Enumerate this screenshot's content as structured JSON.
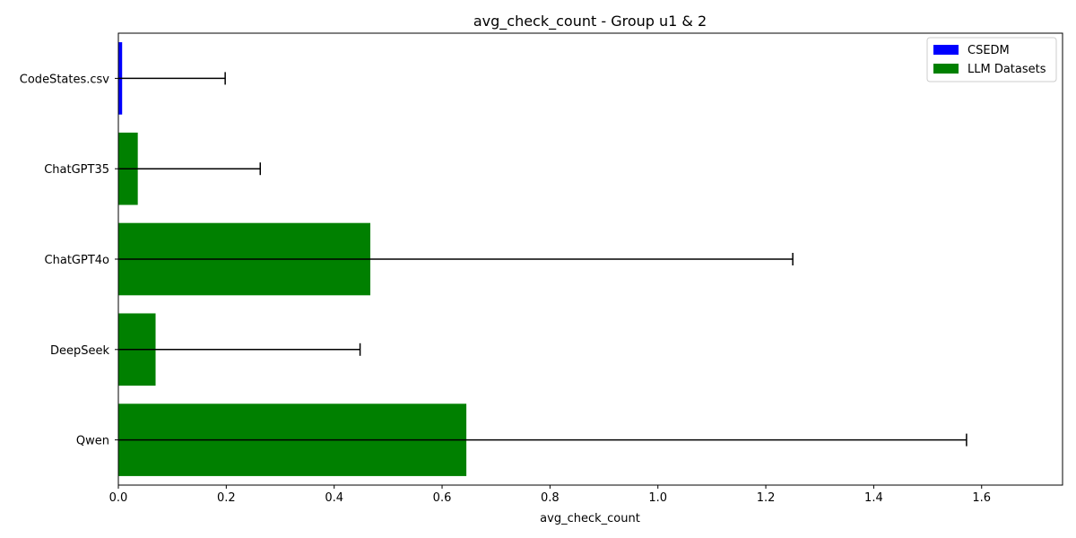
{
  "chart_data": {
    "type": "bar",
    "orientation": "horizontal",
    "title": "avg_check_count - Group u1 & 2",
    "xlabel": "avg_check_count",
    "ylabel": "",
    "categories": [
      "CodeStates.csv",
      "ChatGPT35",
      "ChatGPT4o",
      "DeepSeek",
      "Qwen"
    ],
    "values": [
      0.007,
      0.036,
      0.467,
      0.069,
      0.645
    ],
    "errors": [
      0.191,
      0.227,
      0.783,
      0.379,
      0.927
    ],
    "groups": [
      "CSEDM",
      "LLM Datasets",
      "LLM Datasets",
      "LLM Datasets",
      "LLM Datasets"
    ],
    "xlim": [
      0,
      1.75
    ],
    "xticks": [
      0.0,
      0.2,
      0.4,
      0.6,
      0.8,
      1.0,
      1.2,
      1.4,
      1.6
    ],
    "xtick_labels": [
      "0.0",
      "0.2",
      "0.4",
      "0.6",
      "0.8",
      "1.0",
      "1.2",
      "1.4",
      "1.6"
    ],
    "grid": false,
    "legend": {
      "position": "top-right",
      "entries": [
        {
          "name": "CSEDM",
          "color": "#0000ff"
        },
        {
          "name": "LLM Datasets",
          "color": "#008000"
        }
      ]
    }
  }
}
